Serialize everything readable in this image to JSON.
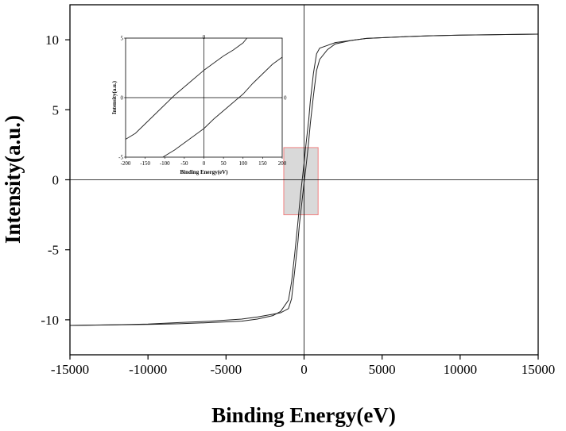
{
  "chart_data": [
    {
      "type": "line",
      "xlabel": "Binding Energy(eV)",
      "ylabel": "Intensity(a.u.)",
      "xlim": [
        -15000,
        15000
      ],
      "ylim": [
        -12.5,
        12.5
      ],
      "xticks": [
        -15000,
        -10000,
        -5000,
        0,
        5000,
        10000,
        15000
      ],
      "yticks": [
        -10,
        -5,
        0,
        5,
        10
      ],
      "grid": false,
      "reference_lines": {
        "x": 0,
        "y": 0
      },
      "highlight_region": {
        "x": [
          -1300,
          900
        ],
        "y": [
          -2.5,
          2.3
        ],
        "fill": "#d9d9d9",
        "stroke": "#f08080"
      },
      "series": [
        {
          "branch": "ascending",
          "x": [
            -15000,
            -12000,
            -10000,
            -8000,
            -6000,
            -4000,
            -3000,
            -2000,
            -1500,
            -1000,
            -800,
            -600,
            -400,
            -300,
            -200,
            -100,
            0,
            100,
            200,
            300,
            400,
            600,
            800,
            1000,
            1500,
            2000,
            3000,
            4000,
            6000,
            8000,
            10000,
            12000,
            15000
          ],
          "y": [
            -10.4,
            -10.35,
            -10.3,
            -10.2,
            -10.1,
            -9.95,
            -9.8,
            -9.6,
            -9.5,
            -9.2,
            -8.5,
            -6.5,
            -4.5,
            -3.2,
            -2.2,
            -1.2,
            -0.2,
            0.7,
            1.7,
            2.8,
            4.0,
            6.0,
            7.8,
            8.6,
            9.3,
            9.7,
            9.95,
            10.1,
            10.2,
            10.28,
            10.33,
            10.36,
            10.4
          ]
        },
        {
          "branch": "descending",
          "x": [
            15000,
            12000,
            10000,
            8000,
            6000,
            4000,
            3000,
            2000,
            1500,
            1000,
            800,
            600,
            400,
            300,
            200,
            100,
            0,
            -100,
            -200,
            -300,
            -400,
            -600,
            -800,
            -1000,
            -1500,
            -2000,
            -3000,
            -4000,
            -6000,
            -8000,
            -10000,
            -12000,
            -15000
          ],
          "y": [
            10.4,
            10.36,
            10.33,
            10.28,
            10.2,
            10.1,
            9.95,
            9.8,
            9.6,
            9.4,
            9.0,
            7.6,
            5.6,
            4.3,
            3.3,
            2.3,
            1.2,
            0.2,
            -0.8,
            -1.9,
            -3.1,
            -5.3,
            -7.3,
            -8.6,
            -9.4,
            -9.7,
            -9.95,
            -10.1,
            -10.2,
            -10.28,
            -10.33,
            -10.36,
            -10.4
          ]
        }
      ]
    },
    {
      "type": "line",
      "xlabel": "Binding Energy(eV)",
      "ylabel": "Intensity(a.u.)",
      "xlim": [
        -200,
        200
      ],
      "ylim": [
        -5,
        5
      ],
      "xticks": [
        -200,
        -150,
        -100,
        -50,
        0,
        50,
        100,
        150,
        200
      ],
      "yticks": [
        -5,
        0,
        5
      ],
      "right_ytick": "0",
      "top_xtick": "0",
      "reference_lines": {
        "x": 0,
        "y": 0
      },
      "series": [
        {
          "branch": "upper",
          "x": [
            -200,
            -175,
            -150,
            -125,
            -100,
            -75,
            -50,
            -25,
            0,
            25,
            50,
            75,
            100,
            110
          ],
          "y": [
            -3.5,
            -3.0,
            -2.2,
            -1.4,
            -0.6,
            0.2,
            0.9,
            1.6,
            2.3,
            2.9,
            3.5,
            4.0,
            4.6,
            5.0
          ]
        },
        {
          "branch": "lower",
          "x": [
            -105,
            -75,
            -50,
            -25,
            0,
            25,
            50,
            75,
            100,
            125,
            150,
            175,
            200
          ],
          "y": [
            -5.0,
            -4.4,
            -3.8,
            -3.2,
            -2.6,
            -1.8,
            -1.1,
            -0.4,
            0.3,
            1.2,
            2.0,
            2.8,
            3.4
          ]
        }
      ]
    }
  ]
}
